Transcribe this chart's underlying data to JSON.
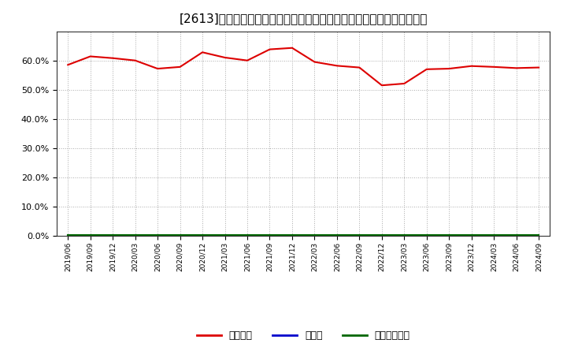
{
  "title": "[2613]　自己資本、のれん、繰延税金資産の総資産に対する比率の推移",
  "x_labels": [
    "2019/06",
    "2019/09",
    "2019/12",
    "2020/03",
    "2020/06",
    "2020/09",
    "2020/12",
    "2021/03",
    "2021/06",
    "2021/09",
    "2021/12",
    "2022/03",
    "2022/06",
    "2022/09",
    "2022/12",
    "2023/03",
    "2023/06",
    "2023/09",
    "2023/12",
    "2024/03",
    "2024/06",
    "2024/09"
  ],
  "jiko_shihon": [
    0.585,
    0.614,
    0.608,
    0.6,
    0.572,
    0.578,
    0.628,
    0.61,
    0.6,
    0.638,
    0.643,
    0.595,
    0.582,
    0.576,
    0.515,
    0.521,
    0.57,
    0.572,
    0.581,
    0.578,
    0.574,
    0.576
  ],
  "noren": [
    0.001,
    0.001,
    0.001,
    0.001,
    0.001,
    0.001,
    0.001,
    0.001,
    0.001,
    0.001,
    0.001,
    0.001,
    0.001,
    0.001,
    0.001,
    0.001,
    0.001,
    0.001,
    0.001,
    0.001,
    0.001,
    0.001
  ],
  "kurinobe_zekin_shisan": [
    0.004,
    0.004,
    0.004,
    0.004,
    0.004,
    0.004,
    0.004,
    0.004,
    0.004,
    0.004,
    0.004,
    0.004,
    0.004,
    0.004,
    0.004,
    0.004,
    0.004,
    0.004,
    0.004,
    0.004,
    0.004,
    0.004
  ],
  "jiko_color": "#dd0000",
  "noren_color": "#0000cc",
  "kurinobe_color": "#006600",
  "legend_labels": [
    "自己資本",
    "のれん",
    "繰延税金資産"
  ],
  "ylim": [
    0.0,
    0.7
  ],
  "yticks": [
    0.0,
    0.1,
    0.2,
    0.3,
    0.4,
    0.5,
    0.6
  ],
  "background_color": "#ffffff",
  "plot_bg_color": "#ffffff",
  "grid_color": "#aaaaaa",
  "title_fontsize": 11
}
